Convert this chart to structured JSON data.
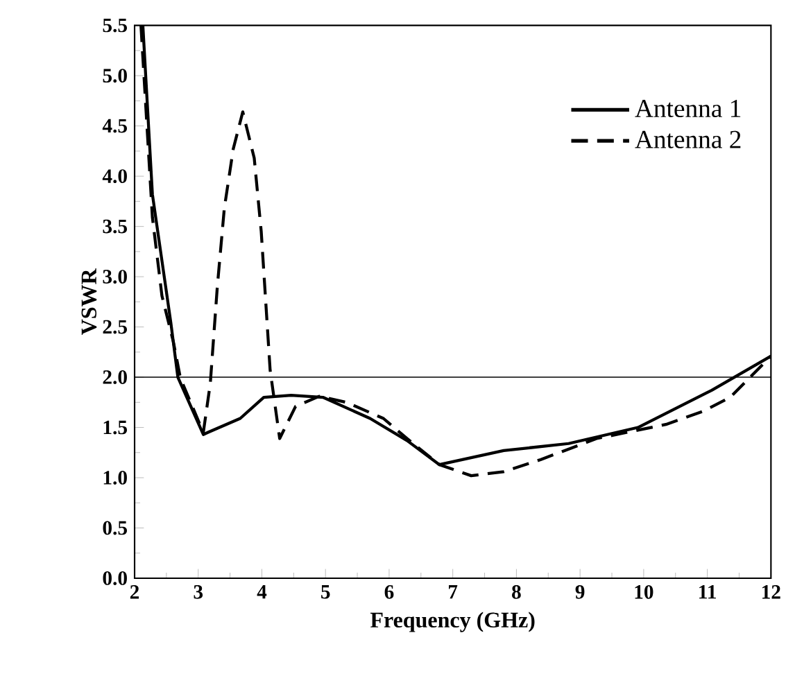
{
  "chart_data": {
    "type": "line",
    "xlabel": "Frequency (GHz)",
    "ylabel": "VSWR",
    "xlim": [
      2,
      12
    ],
    "xticks": [
      2,
      3,
      4,
      5,
      6,
      7,
      8,
      9,
      10,
      11,
      12
    ],
    "ylim": [
      0,
      5.5
    ],
    "yticks": [
      {
        "value": 0,
        "label": "0.0"
      },
      {
        "value": 0.5,
        "label": "0.5"
      },
      {
        "value": 1,
        "label": "1.0"
      },
      {
        "value": 1.5,
        "label": "1.5"
      },
      {
        "value": 2,
        "label": "2.0"
      },
      {
        "value": 2.5,
        "label": "2.5"
      },
      {
        "value": 3,
        "label": "3.0"
      },
      {
        "value": 3.5,
        "label": "3.5"
      },
      {
        "value": 4,
        "label": "4.0"
      },
      {
        "value": 4.5,
        "label": "4.5"
      },
      {
        "value": 5,
        "label": "5.0"
      },
      {
        "value": 5.5,
        "label": "5.5"
      }
    ],
    "grid": false,
    "legend": "top right",
    "marker": "none",
    "ref_lines": [
      {
        "axis": "y",
        "value": 2
      }
    ],
    "series": [
      {
        "name": "Antenna 1",
        "color": "#000000",
        "line_style": "solid",
        "x": [
          2.13,
          2.28,
          2.57,
          2.68,
          3.08,
          3.15,
          3.66,
          4.03,
          4.46,
          4.96,
          5.7,
          6.28,
          6.79,
          7.8,
          8.82,
          9.91,
          11.07,
          12
        ],
        "values": [
          5.5,
          3.82,
          2.54,
          2.0,
          1.43,
          1.45,
          1.59,
          1.8,
          1.82,
          1.8,
          1.59,
          1.37,
          1.13,
          1.27,
          1.34,
          1.5,
          1.87,
          2.21
        ]
      },
      {
        "name": "Antenna 2",
        "color": "#000000",
        "line_style": "dashed",
        "x": [
          2.1,
          2.28,
          2.43,
          2.61,
          2.72,
          3.08,
          3.19,
          3.3,
          3.41,
          3.55,
          3.7,
          3.88,
          3.99,
          4.06,
          4.13,
          4.28,
          4.53,
          4.9,
          5.33,
          5.91,
          6.28,
          6.79,
          7.29,
          7.8,
          8.38,
          9.26,
          10.35,
          10.93,
          11.36,
          12
        ],
        "values": [
          5.5,
          3.59,
          2.81,
          2.35,
          1.99,
          1.45,
          1.94,
          2.9,
          3.68,
          4.27,
          4.64,
          4.18,
          3.45,
          2.76,
          2.07,
          1.39,
          1.71,
          1.81,
          1.75,
          1.59,
          1.39,
          1.13,
          1.02,
          1.06,
          1.18,
          1.39,
          1.53,
          1.66,
          1.8,
          2.21
        ]
      }
    ]
  }
}
